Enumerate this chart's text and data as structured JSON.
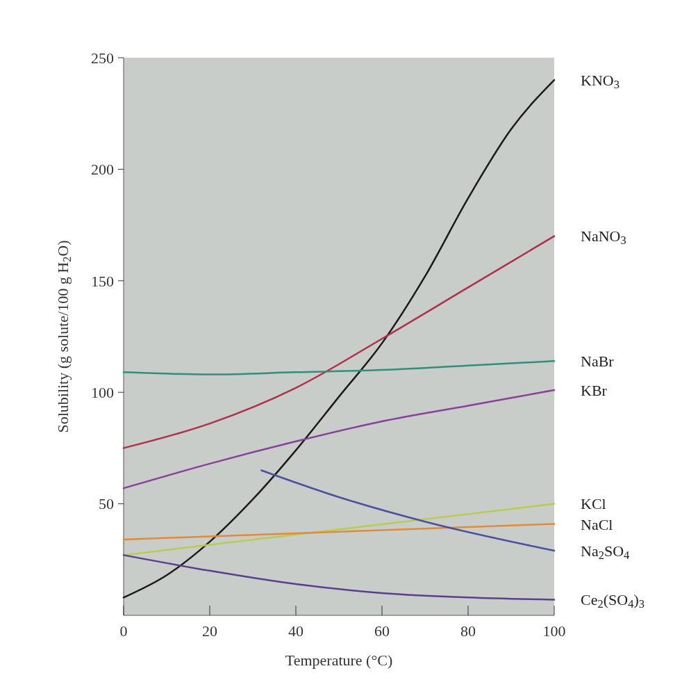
{
  "chart_data": {
    "type": "line",
    "xlabel": "Temperature (°C)",
    "ylabel": "Solubility (g solute/100 g H$_{2}$O)",
    "xlim": [
      0,
      100
    ],
    "xticks": [
      0,
      20,
      40,
      60,
      80,
      100
    ],
    "ylim": [
      0,
      250
    ],
    "yticks": [
      50,
      100,
      150,
      200,
      250
    ],
    "grid": false,
    "line_style": "solid",
    "series": [
      {
        "name": "KNO$_{3}$",
        "color": "#1a1a1a",
        "x": [
          0,
          10,
          20,
          30,
          40,
          50,
          60,
          70,
          80,
          90,
          100
        ],
        "values": [
          8,
          18,
          33,
          52,
          74,
          98,
          122,
          152,
          187,
          218,
          240
        ]
      },
      {
        "name": "NaNO$_{3}$",
        "color": "#b0304a",
        "x": [
          0,
          20,
          40,
          60,
          80,
          100
        ],
        "values": [
          75,
          86,
          102,
          124,
          147,
          170
        ]
      },
      {
        "name": "NaBr",
        "color": "#2f8f7a",
        "x": [
          0,
          20,
          40,
          60,
          80,
          100
        ],
        "values": [
          109,
          108,
          109,
          110,
          112,
          114
        ]
      },
      {
        "name": "KBr",
        "color": "#8a3f9a",
        "x": [
          0,
          20,
          40,
          60,
          80,
          100
        ],
        "values": [
          57,
          68,
          78,
          87,
          94,
          101
        ]
      },
      {
        "name": "KCl",
        "color": "#b8cc50",
        "x": [
          0,
          100
        ],
        "values": [
          27,
          50
        ]
      },
      {
        "name": "NaCl",
        "color": "#e08a3a",
        "x": [
          0,
          100
        ],
        "values": [
          34,
          41
        ]
      },
      {
        "name": "Na$_{2}$SO$_{4}$",
        "color": "#4a4fa0",
        "x": [
          32,
          50,
          70,
          100
        ],
        "values": [
          65,
          53,
          42,
          29
        ]
      },
      {
        "name": "Ce$_{2}$(SO$_{4}$)$_{3}$",
        "color": "#5a3f90",
        "x": [
          0,
          20,
          40,
          60,
          80,
          100
        ],
        "values": [
          27,
          20,
          14,
          10,
          8,
          7
        ]
      }
    ]
  }
}
